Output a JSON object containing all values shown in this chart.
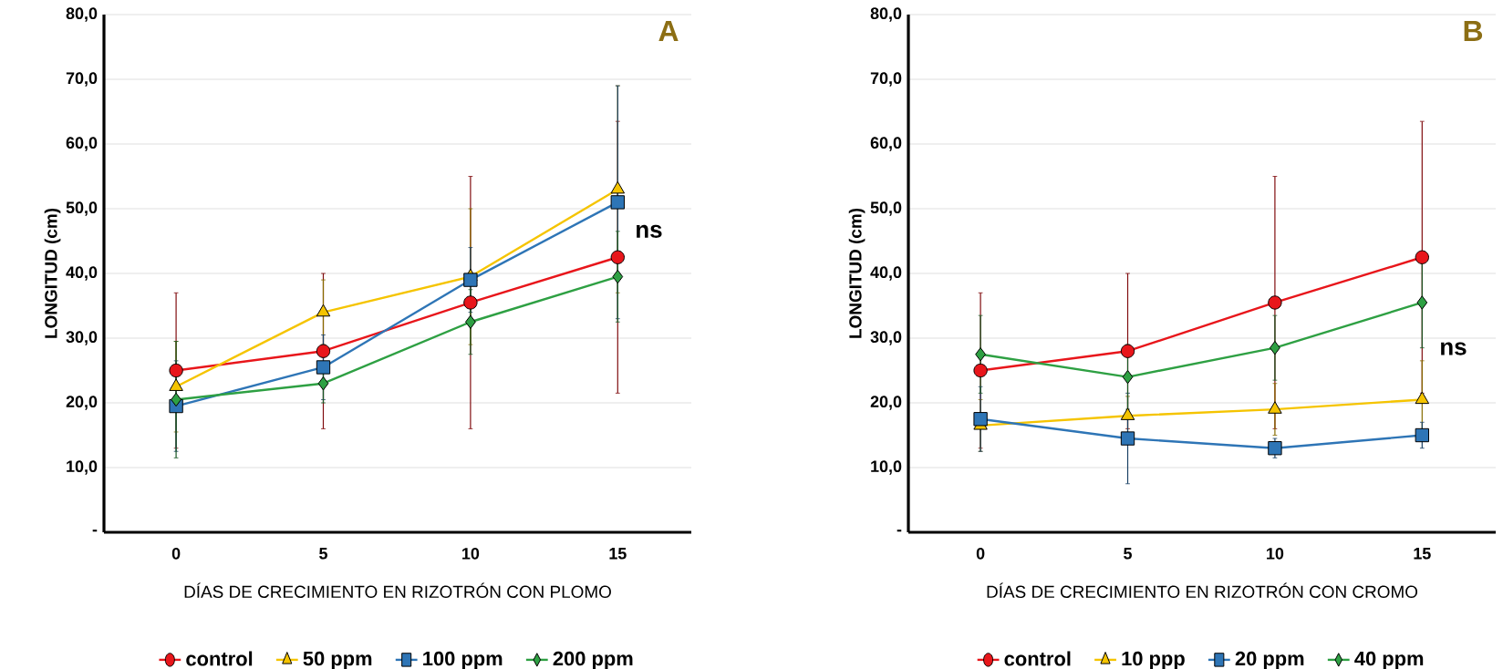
{
  "chart_data": [
    {
      "type": "line",
      "xlabel": "DÍAS DE CRECIMIENTO EN RIZOTRÓN CON PLOMO",
      "ylabel": "LONGITUD (cm)",
      "categories": [
        "0",
        "5",
        "10",
        "15"
      ],
      "ylim": [
        0,
        80
      ],
      "yticks": [
        {
          "value": 0,
          "label": "-"
        },
        {
          "value": 10,
          "label": "10,0"
        },
        {
          "value": 20,
          "label": "20,0"
        },
        {
          "value": 30,
          "label": "30,0"
        },
        {
          "value": 40,
          "label": "40,0"
        },
        {
          "value": 50,
          "label": "50,0"
        },
        {
          "value": 60,
          "label": "60,0"
        },
        {
          "value": 70,
          "label": "70,0"
        },
        {
          "value": 80,
          "label": "80,0"
        }
      ],
      "grid": "y",
      "legend": "bottom",
      "line_style": "solid",
      "annotations": [
        "A",
        "ns"
      ],
      "series": [
        {
          "name": "control",
          "color": "#e8161b",
          "marker": "circle",
          "values": [
            25,
            28,
            35.5,
            42.5
          ],
          "errors": [
            12,
            12,
            19.5,
            21
          ]
        },
        {
          "name": "50 ppm",
          "color": "#f5c400",
          "marker": "triangle",
          "values": [
            22.5,
            34,
            39.5,
            53
          ],
          "errors": [
            7,
            5,
            10.5,
            16
          ]
        },
        {
          "name": "100 ppm",
          "color": "#2e75b6",
          "marker": "square",
          "values": [
            19.5,
            25.5,
            39,
            51
          ],
          "errors": [
            7,
            5,
            5,
            18
          ]
        },
        {
          "name": "200 ppm",
          "color": "#2ea043",
          "marker": "diamond",
          "values": [
            20.5,
            23,
            32.5,
            39.5
          ],
          "errors": [
            9,
            3,
            5,
            7
          ]
        }
      ]
    },
    {
      "type": "line",
      "xlabel": "DÍAS DE CRECIMIENTO EN RIZOTRÓN CON CROMO",
      "ylabel": "LONGITUD (cm)",
      "categories": [
        "0",
        "5",
        "10",
        "15"
      ],
      "ylim": [
        0,
        80
      ],
      "yticks": [
        {
          "value": 0,
          "label": "-"
        },
        {
          "value": 10,
          "label": "10,0"
        },
        {
          "value": 20,
          "label": "20,0"
        },
        {
          "value": 30,
          "label": "30,0"
        },
        {
          "value": 40,
          "label": "40,0"
        },
        {
          "value": 50,
          "label": "50,0"
        },
        {
          "value": 60,
          "label": "60,0"
        },
        {
          "value": 70,
          "label": "70,0"
        },
        {
          "value": 80,
          "label": "80,0"
        }
      ],
      "grid": "y",
      "legend": "bottom",
      "line_style": "solid",
      "annotations": [
        "B",
        "ns"
      ],
      "series": [
        {
          "name": "control",
          "color": "#e8161b",
          "marker": "circle",
          "values": [
            25,
            28,
            35.5,
            42.5
          ],
          "errors": [
            12,
            12,
            19.5,
            21
          ]
        },
        {
          "name": "10 ppp",
          "color": "#f5c400",
          "marker": "triangle",
          "values": [
            16.5,
            18,
            19,
            20.5
          ],
          "errors": [
            4,
            3,
            4,
            6
          ]
        },
        {
          "name": "20 ppm",
          "color": "#2e75b6",
          "marker": "square",
          "values": [
            17.5,
            14.5,
            13,
            15
          ],
          "errors": [
            5,
            7,
            1.5,
            2
          ]
        },
        {
          "name": "40 ppm",
          "color": "#2ea043",
          "marker": "diamond",
          "values": [
            27.5,
            24,
            28.5,
            35.5
          ],
          "errors": [
            6,
            5,
            5,
            7
          ]
        }
      ]
    }
  ]
}
